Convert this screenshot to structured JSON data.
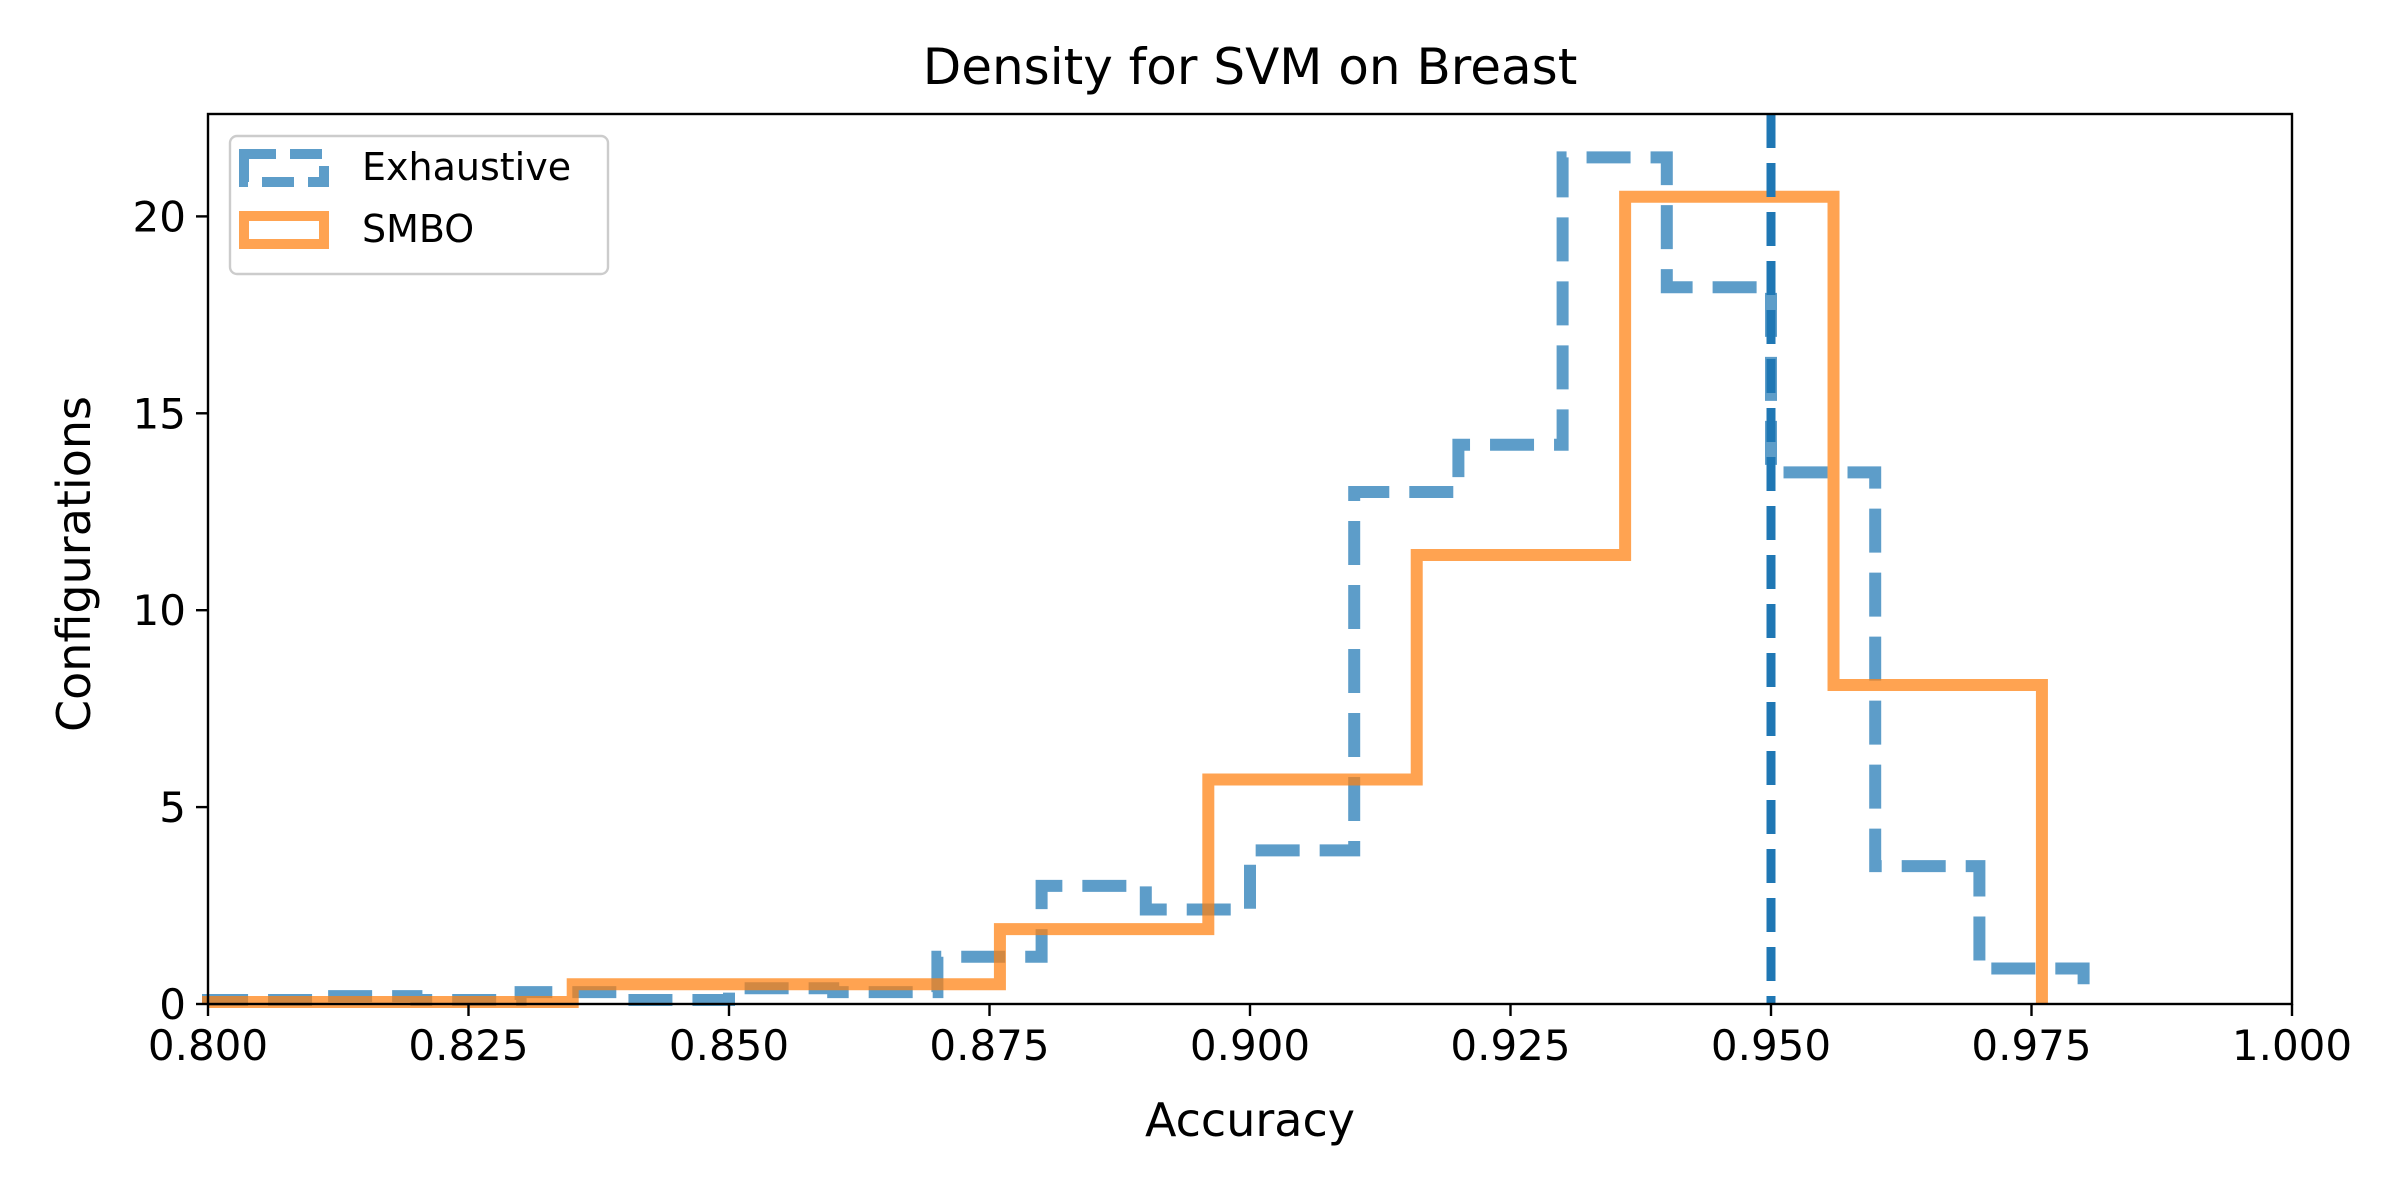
{
  "chart_data": {
    "type": "histogram-step",
    "title": "Density for SVM on Breast",
    "xlabel": "Accuracy",
    "ylabel": "Configurations",
    "xlim": [
      0.8,
      1.0
    ],
    "ylim": [
      0,
      22.6
    ],
    "x_ticks": [
      "0.800",
      "0.825",
      "0.850",
      "0.875",
      "0.900",
      "0.925",
      "0.950",
      "0.975",
      "1.000"
    ],
    "y_ticks": [
      "0",
      "5",
      "10",
      "15",
      "20"
    ],
    "grid": false,
    "legend_position": "upper-left",
    "series": [
      {
        "name": "Exhaustive",
        "style": "dashed",
        "color": "#1f77b4",
        "edges": [
          0.8,
          0.81,
          0.82,
          0.83,
          0.84,
          0.85,
          0.86,
          0.87,
          0.88,
          0.89,
          0.9,
          0.91,
          0.92,
          0.93,
          0.94,
          0.95,
          0.96,
          0.97,
          0.98
        ],
        "values": [
          0.1,
          0.2,
          0.1,
          0.3,
          0.1,
          0.4,
          0.3,
          1.2,
          3.0,
          2.4,
          3.9,
          13.0,
          14.2,
          21.5,
          18.2,
          13.5,
          3.5,
          0.9
        ]
      },
      {
        "name": "SMBO",
        "style": "solid",
        "color": "#ff7f0e",
        "edges": [
          0.8,
          0.835,
          0.876,
          0.896,
          0.916,
          0.936,
          0.956,
          0.976
        ],
        "values": [
          0.05,
          0.5,
          1.9,
          5.7,
          11.4,
          20.5,
          8.1
        ]
      }
    ],
    "annotations": [
      {
        "kind": "vertical-line",
        "x": 0.95,
        "style": "dashed",
        "color": "#1f77b4"
      }
    ]
  }
}
